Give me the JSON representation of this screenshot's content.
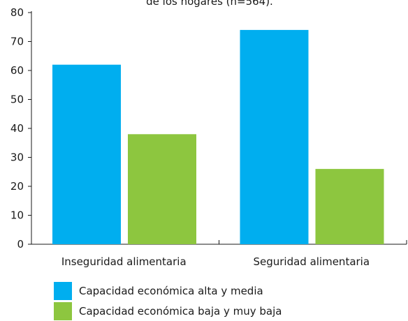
{
  "chart_data": {
    "type": "bar",
    "title": "de los hogares (n=564).",
    "categories": [
      "Inseguridad alimentaria",
      "Seguridad alimentaria"
    ],
    "series": [
      {
        "name": "Capacidad económica alta y media",
        "color": "#00aeef",
        "values": [
          62,
          74
        ]
      },
      {
        "name": "Capacidad económica baja y muy baja",
        "color": "#8dc63f",
        "values": [
          38,
          26
        ]
      }
    ],
    "xlabel": "",
    "ylabel": "",
    "ylim": [
      0,
      80
    ],
    "yticks": [
      0,
      10,
      20,
      30,
      40,
      50,
      60,
      70,
      80
    ],
    "grid": false,
    "legend_position": "bottom-left"
  }
}
